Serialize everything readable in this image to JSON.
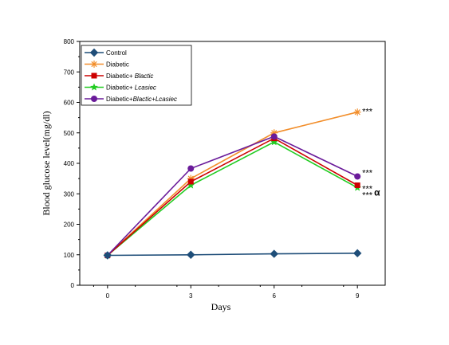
{
  "chart_data": {
    "type": "line",
    "title": "",
    "xlabel": "Days",
    "ylabel": "Blood glucose level(mg/dl)",
    "x": [
      0,
      3,
      6,
      9
    ],
    "x_ticks": [
      "0",
      "3",
      "6",
      "9"
    ],
    "xlim": [
      -1,
      10
    ],
    "ylim": [
      0,
      800
    ],
    "y_ticks": [
      "0",
      "100",
      "200",
      "300",
      "400",
      "500",
      "600",
      "700",
      "800"
    ],
    "grid": false,
    "legend_position": "top-left",
    "series": [
      {
        "name": "Control",
        "color": "#1f4e79",
        "marker": "diamond",
        "values": [
          98,
          100,
          103,
          105
        ]
      },
      {
        "name": "Diabetic",
        "color": "#f28e2b",
        "marker": "asterisk",
        "values": [
          98,
          350,
          500,
          568
        ]
      },
      {
        "name": "Diabetic+ Blactic",
        "name_plain": "Diabetic+ ",
        "name_italic": "Blactic",
        "color": "#cc0000",
        "marker": "square",
        "values": [
          98,
          340,
          482,
          328
        ]
      },
      {
        "name": "Diabetic+ Lcasiec",
        "name_plain": "Diabetic+ ",
        "name_italic": "Lcasiec",
        "color": "#22cc22",
        "marker": "star",
        "values": [
          98,
          328,
          470,
          320
        ]
      },
      {
        "name": "Diabetic+Blactic+Lcasiec",
        "name_plain": "Diabetic+",
        "name_italic": "Blactic+Lcasiec",
        "color": "#6a1b9a",
        "marker": "circle",
        "values": [
          98,
          383,
          488,
          357
        ]
      }
    ],
    "annotations": [
      {
        "text": "***",
        "series": 1,
        "x": 9
      },
      {
        "text": "***",
        "series": 4,
        "x": 9
      },
      {
        "text": "***",
        "series": 3,
        "x": 9
      },
      {
        "text": "α",
        "series": 3,
        "x": 9
      }
    ]
  }
}
